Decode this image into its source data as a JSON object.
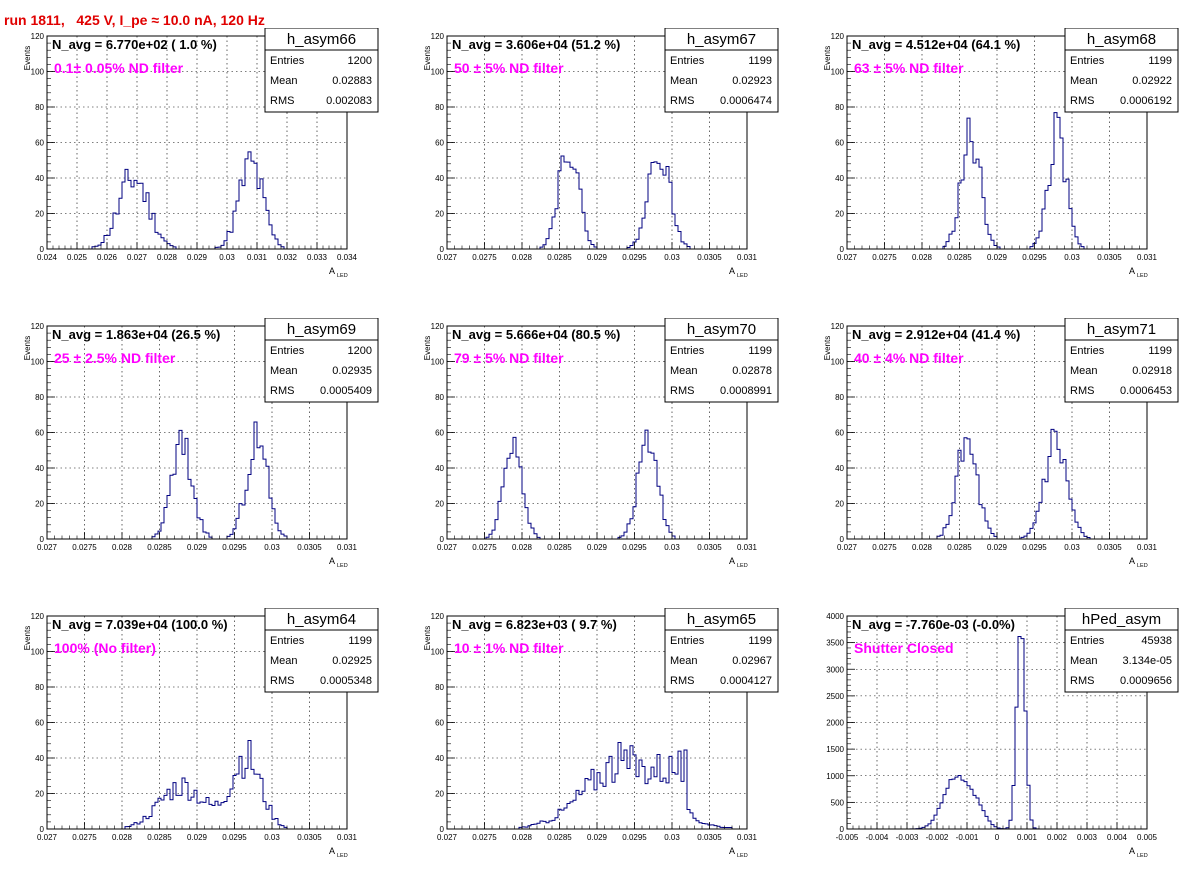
{
  "run_title": "run 1811,   425 V, I_pe ≈ 10.0 nA, 120 Hz",
  "stat_labels": {
    "entries": "Entries",
    "mean": "Mean",
    "rms": "RMS"
  },
  "colors": {
    "line": "#000080",
    "annotation": "#ff00ff",
    "title": "#e00000"
  },
  "chart_data": [
    {
      "type": "histogram",
      "name": "h_asym66",
      "navg": "N_avg = 6.770e+02 ( 1.0 %)",
      "annotation": "0.1± 0.05% ND filter",
      "entries": "1200",
      "mean": "0.02883",
      "rms": "0.002083",
      "xlabel": "A",
      "xlabel_sub": "LED",
      "ylabel": "Events",
      "xlim": [
        0.024,
        0.034
      ],
      "ylim": [
        0,
        120
      ],
      "xticks": [
        0.024,
        0.025,
        0.026,
        0.027,
        0.028,
        0.029,
        0.03,
        0.031,
        0.032,
        0.033,
        0.034
      ],
      "xtick_labels": [
        "0.024",
        "0.025",
        "0.026",
        "0.027",
        "0.028",
        "0.029",
        "0.03",
        "0.031",
        "0.032",
        "0.033",
        "0.034"
      ],
      "yticks": [
        0,
        20,
        40,
        60,
        80,
        100,
        120
      ],
      "ytick_labels": [
        "0",
        "20",
        "40",
        "60",
        "80",
        "100",
        "120"
      ],
      "peaks": [
        {
          "c": 0.0269,
          "s": 0.0005,
          "a": 40
        },
        {
          "c": 0.0308,
          "s": 0.0004,
          "a": 47
        }
      ],
      "noise": 0.3,
      "seed": 11
    },
    {
      "type": "histogram",
      "name": "h_asym67",
      "navg": "N_avg = 3.606e+04 (51.2 %)",
      "annotation": "50 ± 5% ND filter",
      "entries": "1199",
      "mean": "0.02923",
      "rms": "0.0006474",
      "xlabel": "A",
      "xlabel_sub": "LED",
      "ylabel": "Events",
      "xlim": [
        0.027,
        0.031
      ],
      "ylim": [
        0,
        120
      ],
      "xticks": [
        0.027,
        0.0275,
        0.028,
        0.0285,
        0.029,
        0.0295,
        0.03,
        0.0305,
        0.031
      ],
      "xtick_labels": [
        "0.027",
        "0.0275",
        "0.028",
        "0.0285",
        "0.029",
        "0.0295",
        "0.03",
        "0.0305",
        "0.031"
      ],
      "yticks": [
        0,
        20,
        40,
        60,
        80,
        100,
        120
      ],
      "ytick_labels": [
        "0",
        "20",
        "40",
        "60",
        "80",
        "100",
        "120"
      ],
      "peaks": [
        {
          "c": 0.02862,
          "s": 0.00013,
          "a": 60
        },
        {
          "c": 0.02983,
          "s": 0.00014,
          "a": 57
        }
      ],
      "noise": 0.2,
      "seed": 22
    },
    {
      "type": "histogram",
      "name": "h_asym68",
      "navg": "N_avg = 4.512e+04 (64.1 %)",
      "annotation": "63 ± 5% ND filter",
      "entries": "1199",
      "mean": "0.02922",
      "rms": "0.0006192",
      "xlabel": "A",
      "xlabel_sub": "LED",
      "ylabel": "Events",
      "xlim": [
        0.027,
        0.031
      ],
      "ylim": [
        0,
        120
      ],
      "xticks": [
        0.027,
        0.0275,
        0.028,
        0.0285,
        0.029,
        0.0295,
        0.03,
        0.0305,
        0.031
      ],
      "xtick_labels": [
        "0.027",
        "0.0275",
        "0.028",
        "0.0285",
        "0.029",
        "0.0295",
        "0.03",
        "0.0305",
        "0.031"
      ],
      "yticks": [
        0,
        20,
        40,
        60,
        80,
        100,
        120
      ],
      "ytick_labels": [
        "0",
        "20",
        "40",
        "60",
        "80",
        "100",
        "120"
      ],
      "peaks": [
        {
          "c": 0.02865,
          "s": 0.00013,
          "a": 62
        },
        {
          "c": 0.0298,
          "s": 0.00012,
          "a": 63
        }
      ],
      "noise": 0.25,
      "seed": 33
    },
    {
      "type": "histogram",
      "name": "h_asym69",
      "navg": "N_avg = 1.863e+04 (26.5 %)",
      "annotation": "25 ± 2.5% ND filter",
      "entries": "1200",
      "mean": "0.02935",
      "rms": "0.0005409",
      "xlabel": "A",
      "xlabel_sub": "LED",
      "ylabel": "Events",
      "xlim": [
        0.027,
        0.031
      ],
      "ylim": [
        0,
        120
      ],
      "xticks": [
        0.027,
        0.0275,
        0.028,
        0.0285,
        0.029,
        0.0295,
        0.03,
        0.0305,
        0.031
      ],
      "xtick_labels": [
        "0.027",
        "0.0275",
        "0.028",
        "0.0285",
        "0.029",
        "0.0295",
        "0.03",
        "0.0305",
        "0.031"
      ],
      "yticks": [
        0,
        20,
        40,
        60,
        80,
        100,
        120
      ],
      "ytick_labels": [
        "0",
        "20",
        "40",
        "60",
        "80",
        "100",
        "120"
      ],
      "peaks": [
        {
          "c": 0.0288,
          "s": 0.00014,
          "a": 52
        },
        {
          "c": 0.0298,
          "s": 0.00014,
          "a": 55
        }
      ],
      "noise": 0.25,
      "seed": 44
    },
    {
      "type": "histogram",
      "name": "h_asym70",
      "navg": "N_avg = 5.666e+04 (80.5 %)",
      "annotation": "79 ± 5% ND filter",
      "entries": "1199",
      "mean": "0.02878",
      "rms": "0.0008991",
      "xlabel": "A",
      "xlabel_sub": "LED",
      "ylabel": "Events",
      "xlim": [
        0.027,
        0.031
      ],
      "ylim": [
        0,
        120
      ],
      "xticks": [
        0.027,
        0.0275,
        0.028,
        0.0285,
        0.029,
        0.0295,
        0.03,
        0.0305,
        0.031
      ],
      "xtick_labels": [
        "0.027",
        "0.0275",
        "0.028",
        "0.0285",
        "0.029",
        "0.0295",
        "0.03",
        "0.0305",
        "0.031"
      ],
      "yticks": [
        0,
        20,
        40,
        60,
        80,
        100,
        120
      ],
      "ytick_labels": [
        "0",
        "20",
        "40",
        "60",
        "80",
        "100",
        "120"
      ],
      "peaks": [
        {
          "c": 0.02788,
          "s": 0.00012,
          "a": 57
        },
        {
          "c": 0.02968,
          "s": 0.00013,
          "a": 56
        }
      ],
      "noise": 0.2,
      "seed": 55
    },
    {
      "type": "histogram",
      "name": "h_asym71",
      "navg": "N_avg = 2.912e+04 (41.4 %)",
      "annotation": "40 ± 4% ND filter",
      "entries": "1199",
      "mean": "0.02918",
      "rms": "0.0006453",
      "xlabel": "A",
      "xlabel_sub": "LED",
      "ylabel": "Events",
      "xlim": [
        0.027,
        0.031
      ],
      "ylim": [
        0,
        120
      ],
      "xticks": [
        0.027,
        0.0275,
        0.028,
        0.0285,
        0.029,
        0.0295,
        0.03,
        0.0305,
        0.031
      ],
      "xtick_labels": [
        "0.027",
        "0.0275",
        "0.028",
        "0.0285",
        "0.029",
        "0.0295",
        "0.03",
        "0.0305",
        "0.031"
      ],
      "yticks": [
        0,
        20,
        40,
        60,
        80,
        100,
        120
      ],
      "ytick_labels": [
        "0",
        "20",
        "40",
        "60",
        "80",
        "100",
        "120"
      ],
      "peaks": [
        {
          "c": 0.0286,
          "s": 0.00014,
          "a": 52
        },
        {
          "c": 0.02978,
          "s": 0.00015,
          "a": 55
        }
      ],
      "noise": 0.25,
      "seed": 66
    },
    {
      "type": "histogram",
      "name": "h_asym64",
      "navg": "N_avg = 7.039e+04 (100.0 %)",
      "annotation": "100% (No filter)",
      "entries": "1199",
      "mean": "0.02925",
      "rms": "0.0005348",
      "xlabel": "A",
      "xlabel_sub": "LED",
      "ylabel": "Events",
      "xlim": [
        0.027,
        0.031
      ],
      "ylim": [
        0,
        120
      ],
      "xticks": [
        0.027,
        0.0275,
        0.028,
        0.0285,
        0.029,
        0.0295,
        0.03,
        0.0305,
        0.031
      ],
      "xtick_labels": [
        "0.027",
        "0.0275",
        "0.028",
        "0.0285",
        "0.029",
        "0.0295",
        "0.03",
        "0.0305",
        "0.031"
      ],
      "yticks": [
        0,
        20,
        40,
        60,
        80,
        100,
        120
      ],
      "ytick_labels": [
        "0",
        "20",
        "40",
        "60",
        "80",
        "100",
        "120"
      ],
      "peaks": [
        {
          "c": 0.0288,
          "s": 0.0003,
          "a": 24
        },
        {
          "c": 0.02965,
          "s": 0.0002,
          "a": 40
        }
      ],
      "noise": 0.3,
      "seed": 77
    },
    {
      "type": "histogram",
      "name": "h_asym65",
      "navg": "N_avg = 6.823e+03 ( 9.7 %)",
      "annotation": "10 ± 1% ND filter",
      "entries": "1199",
      "mean": "0.02967",
      "rms": "0.0004127",
      "xlabel": "A",
      "xlabel_sub": "LED",
      "ylabel": "Events",
      "xlim": [
        0.027,
        0.031
      ],
      "ylim": [
        0,
        120
      ],
      "xticks": [
        0.027,
        0.0275,
        0.028,
        0.0285,
        0.029,
        0.0295,
        0.03,
        0.0305,
        0.031
      ],
      "xtick_labels": [
        "0.027",
        "0.0275",
        "0.028",
        "0.0285",
        "0.029",
        "0.0295",
        "0.03",
        "0.0305",
        "0.031"
      ],
      "yticks": [
        0,
        20,
        40,
        60,
        80,
        100,
        120
      ],
      "ytick_labels": [
        "0",
        "20",
        "40",
        "60",
        "80",
        "100",
        "120"
      ],
      "peaks": [
        {
          "c": 0.02935,
          "s": 0.0005,
          "a": 38
        },
        {
          "c": 0.02995,
          "s": 0.0001,
          "a": 10
        }
      ],
      "noise": 0.3,
      "seed": 88,
      "flat": [
        0.0291,
        0.0302
      ]
    },
    {
      "type": "histogram",
      "name": "hPed_asym",
      "navg": "N_avg = -7.760e-03 (-0.0%)",
      "annotation": "Shutter Closed",
      "entries": "45938",
      "mean": "3.134e-05",
      "rms": "0.0009656",
      "xlabel": "A",
      "xlabel_sub": "LED",
      "ylabel": "",
      "xlim": [
        -0.005,
        0.005
      ],
      "ylim": [
        0,
        4000
      ],
      "xticks": [
        -0.005,
        -0.004,
        -0.003,
        -0.002,
        -0.001,
        0,
        0.001,
        0.002,
        0.003,
        0.004,
        0.005
      ],
      "xtick_labels": [
        "-0.005",
        "-0.004",
        "-0.003",
        "-0.002",
        "-0.001",
        "0",
        "0.001",
        "0.002",
        "0.003",
        "0.004",
        "0.005"
      ],
      "yticks": [
        0,
        500,
        1000,
        1500,
        2000,
        2500,
        3000,
        3500,
        4000
      ],
      "ytick_labels": [
        "0",
        "500",
        "1000",
        "1500",
        "2000",
        "2500",
        "3000",
        "3500",
        "4000"
      ],
      "peaks": [
        {
          "c": -0.0014,
          "s": 0.0004,
          "a": 950
        },
        {
          "c": -0.0007,
          "s": 0.0003,
          "a": 400
        },
        {
          "c": 0.0008,
          "s": 0.00014,
          "a": 3900
        }
      ],
      "noise": 0.05,
      "seed": 99
    }
  ]
}
